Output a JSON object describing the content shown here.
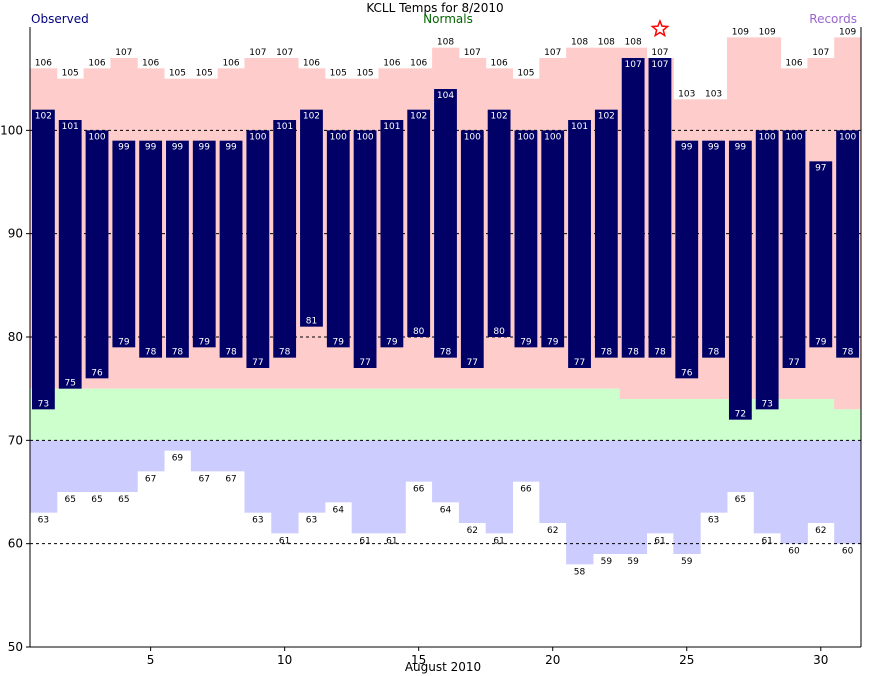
{
  "chart_data": {
    "type": "bar",
    "title": "KCLL Temps for 8/2010",
    "xlabel": "August 2010",
    "ylabel": "",
    "ylim": [
      50,
      110
    ],
    "yticks": [
      50,
      60,
      70,
      80,
      90,
      100
    ],
    "xticks": [
      5,
      10,
      15,
      20,
      25,
      30
    ],
    "grid": "dashed at 60, 70, 80, 90, 100",
    "legend": {
      "observed": "Observed",
      "normals": "Normals",
      "records": "Records"
    },
    "colors": {
      "observed": "#000066",
      "normal_high_band": "#ccffcc",
      "normal_low_band": "#ccccff",
      "record_high_band": "#ffcccc",
      "observed_legend": "#000080",
      "normals_legend": "#006600",
      "records_legend": "#9966cc",
      "star": "#ff0000"
    },
    "days": [
      1,
      2,
      3,
      4,
      5,
      6,
      7,
      8,
      9,
      10,
      11,
      12,
      13,
      14,
      15,
      16,
      17,
      18,
      19,
      20,
      21,
      22,
      23,
      24,
      25,
      26,
      27,
      28,
      29,
      30,
      31
    ],
    "observed_high": [
      102,
      101,
      100,
      99,
      99,
      99,
      99,
      99,
      100,
      101,
      102,
      100,
      100,
      101,
      102,
      104,
      100,
      102,
      100,
      100,
      101,
      102,
      107,
      107,
      99,
      99,
      99,
      100,
      100,
      97,
      100
    ],
    "observed_low": [
      73,
      75,
      76,
      79,
      78,
      78,
      79,
      78,
      77,
      78,
      81,
      79,
      77,
      79,
      80,
      78,
      77,
      80,
      79,
      79,
      77,
      78,
      78,
      78,
      76,
      78,
      72,
      73,
      77,
      79,
      78
    ],
    "normal_high": [
      75,
      75,
      75,
      75,
      75,
      75,
      75,
      75,
      75,
      75,
      75,
      75,
      75,
      75,
      75,
      75,
      75,
      75,
      75,
      75,
      75,
      75,
      74,
      74,
      74,
      74,
      74,
      74,
      74,
      74,
      73
    ],
    "normal_low": [
      70,
      70,
      70,
      70,
      70,
      70,
      70,
      70,
      70,
      70,
      70,
      70,
      70,
      70,
      70,
      70,
      70,
      70,
      70,
      70,
      70,
      70,
      70,
      70,
      70,
      70,
      70,
      70,
      70,
      70,
      70
    ],
    "record_high": [
      106,
      105,
      106,
      107,
      106,
      105,
      105,
      106,
      107,
      107,
      106,
      105,
      105,
      106,
      106,
      108,
      107,
      106,
      105,
      107,
      108,
      108,
      108,
      107,
      103,
      103,
      109,
      109,
      106,
      107,
      109
    ],
    "record_low": [
      63,
      65,
      65,
      65,
      67,
      69,
      67,
      67,
      63,
      61,
      63,
      64,
      61,
      61,
      66,
      64,
      62,
      61,
      66,
      62,
      58,
      59,
      59,
      61,
      59,
      63,
      65,
      61,
      60,
      62,
      60
    ],
    "record_set_day": 24,
    "record_set_marker": "star-icon"
  }
}
